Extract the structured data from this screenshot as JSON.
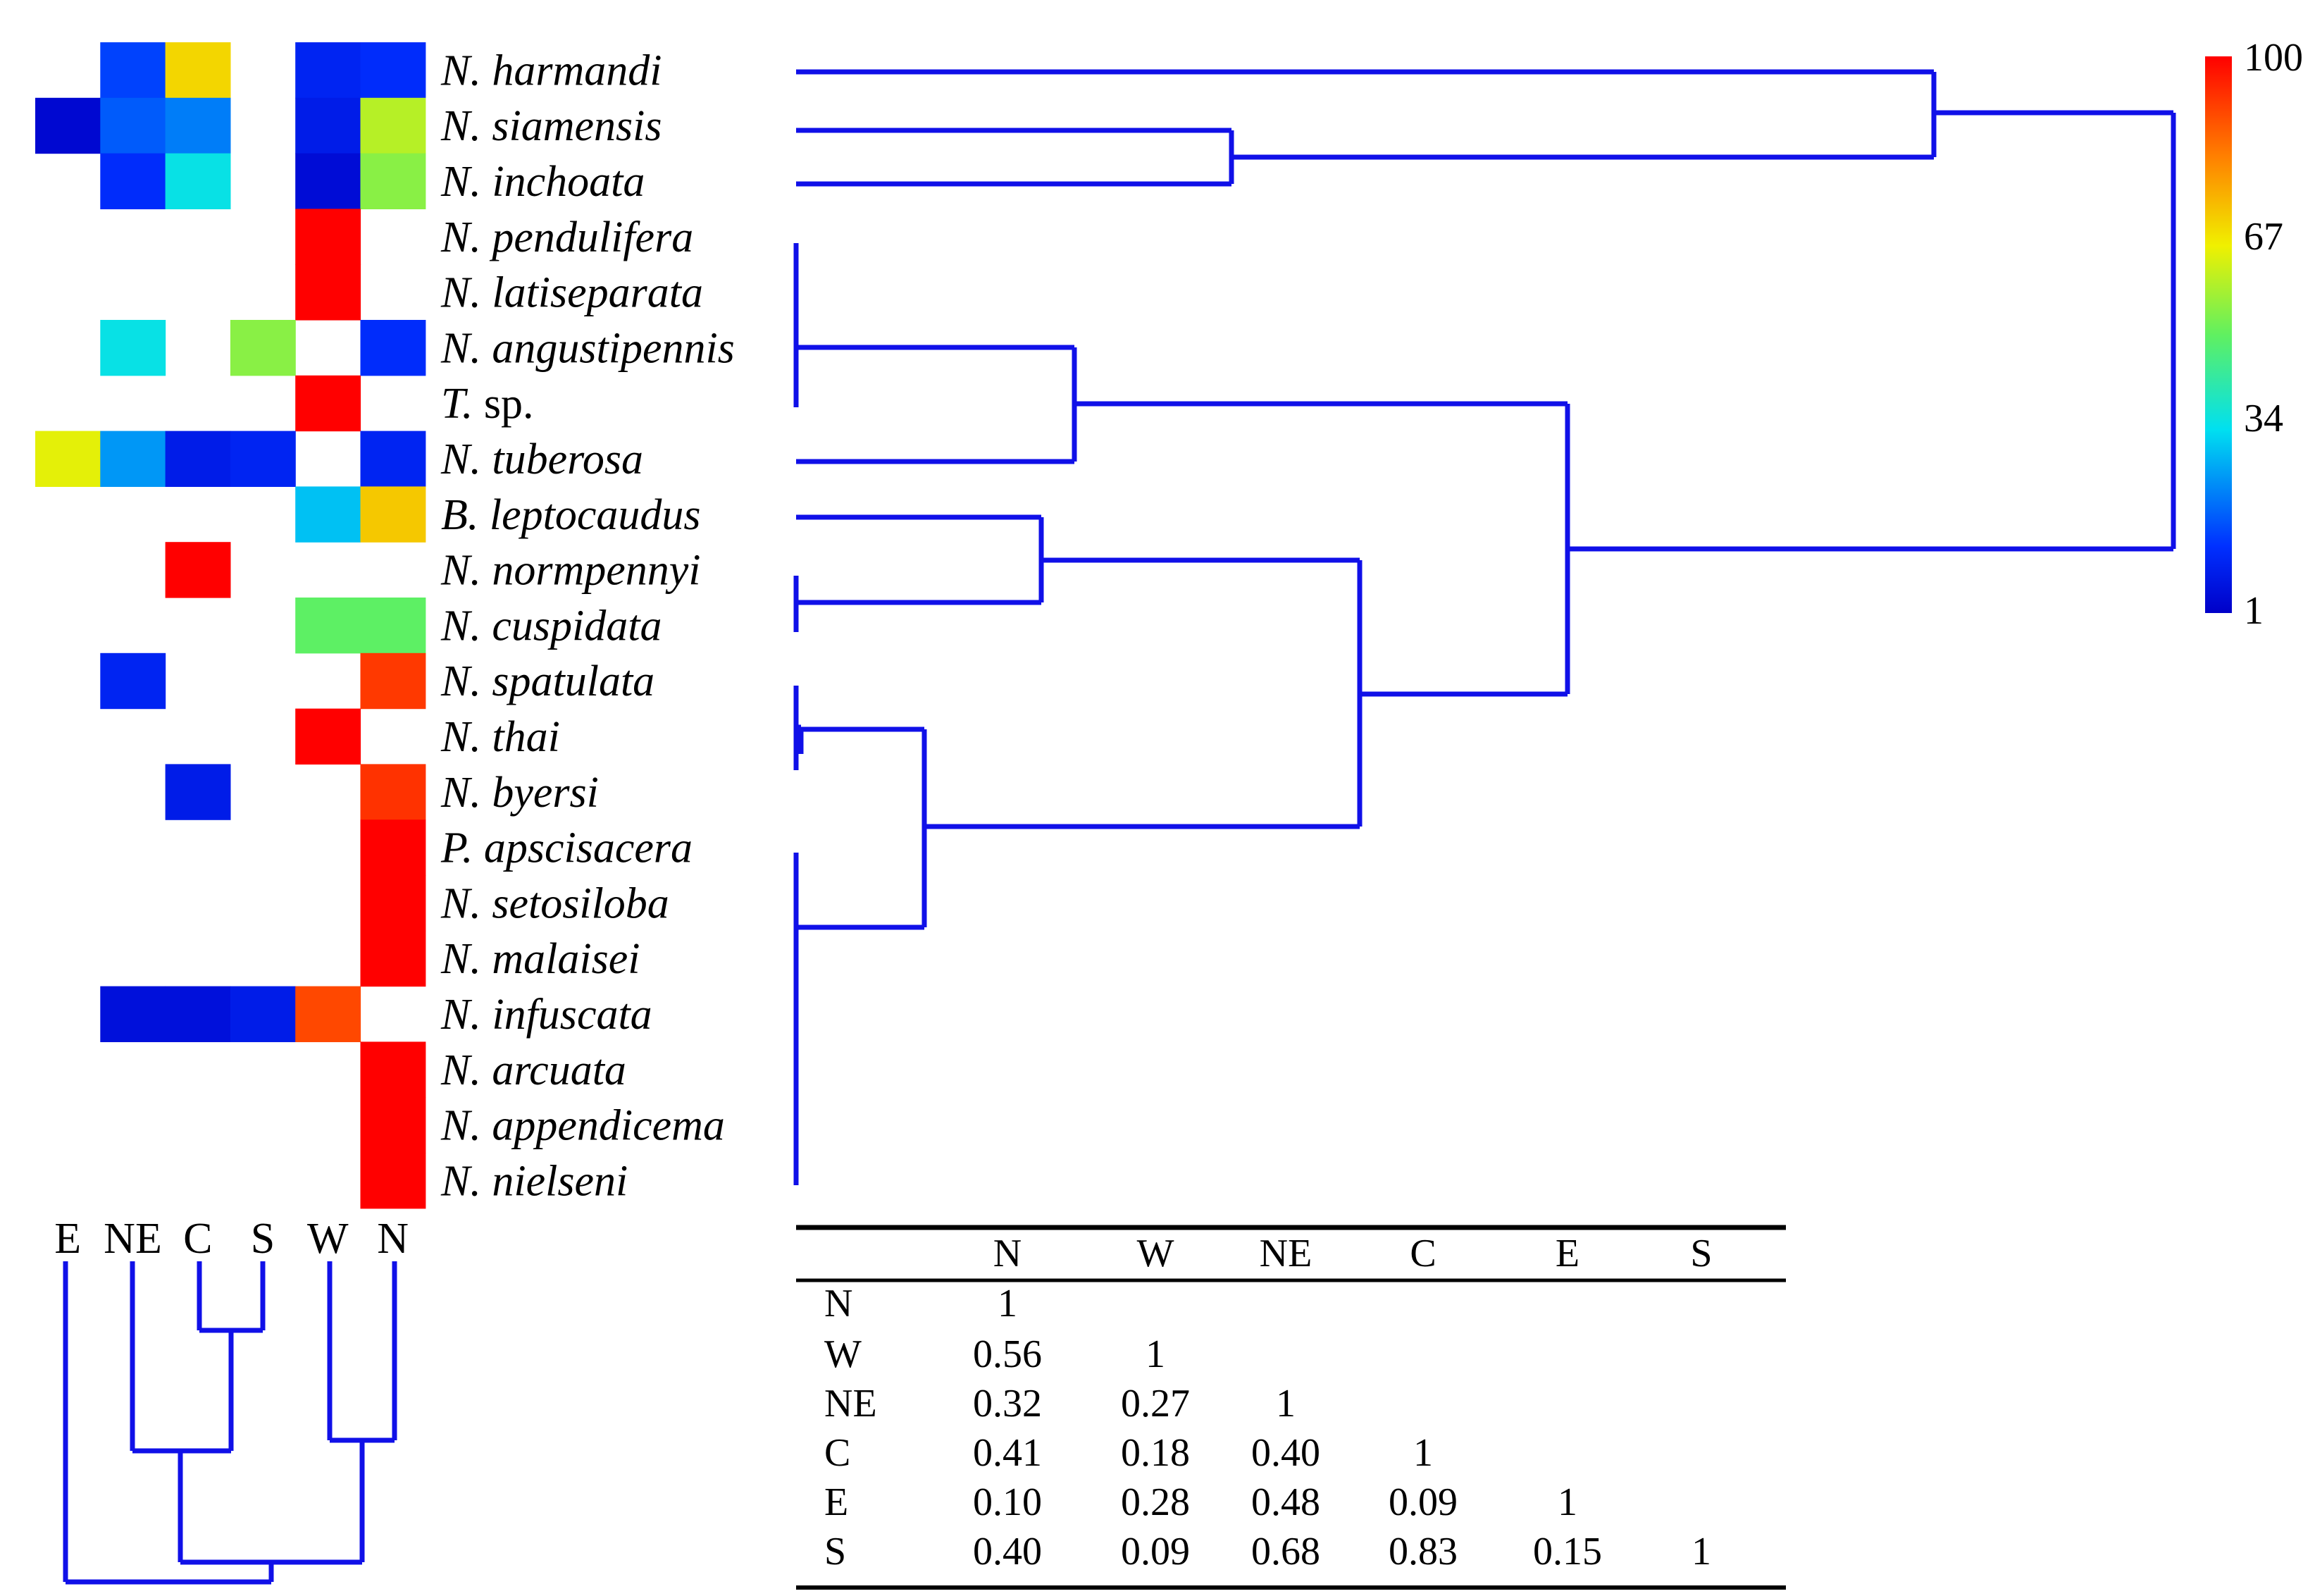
{
  "chart_data": [
    {
      "type": "heatmap",
      "columns": [
        "E",
        "NE",
        "C",
        "S",
        "W",
        "N"
      ],
      "rows": [
        {
          "genus": "N.",
          "epithet": "harmandi",
          "values": [
            null,
            15,
            70,
            null,
            10,
            12
          ]
        },
        {
          "genus": "N.",
          "epithet": "siamensis",
          "values": [
            3,
            18,
            22,
            null,
            8,
            60
          ]
        },
        {
          "genus": "N.",
          "epithet": "inchoata",
          "values": [
            null,
            12,
            35,
            null,
            4,
            55
          ]
        },
        {
          "genus": "N.",
          "epithet": "pendulifera",
          "values": [
            null,
            null,
            null,
            null,
            100,
            null
          ]
        },
        {
          "genus": "N.",
          "epithet": "latiseparata",
          "values": [
            null,
            null,
            null,
            null,
            100,
            null
          ]
        },
        {
          "genus": "N.",
          "epithet": "angustipennis",
          "values": [
            null,
            35,
            null,
            55,
            null,
            12
          ]
        },
        {
          "genus": "T.",
          "epithet": "sp.",
          "values": [
            null,
            null,
            null,
            null,
            100,
            null
          ]
        },
        {
          "genus": "N.",
          "epithet": "tuberosa",
          "values": [
            65,
            25,
            8,
            10,
            null,
            10
          ]
        },
        {
          "genus": "B.",
          "epithet": "leptocaudus",
          "values": [
            null,
            null,
            null,
            null,
            30,
            72
          ]
        },
        {
          "genus": "N.",
          "epithet": "normpennyi",
          "values": [
            null,
            null,
            100,
            null,
            null,
            null
          ]
        },
        {
          "genus": "N.",
          "epithet": "cuspidata",
          "values": [
            null,
            null,
            null,
            null,
            50,
            50
          ]
        },
        {
          "genus": "N.",
          "epithet": "spatulata",
          "values": [
            null,
            10,
            null,
            null,
            null,
            92
          ]
        },
        {
          "genus": "N.",
          "epithet": "thai",
          "values": [
            null,
            null,
            null,
            null,
            100,
            null
          ]
        },
        {
          "genus": "N.",
          "epithet": "byersi",
          "values": [
            null,
            null,
            8,
            null,
            null,
            93
          ]
        },
        {
          "genus": "P.",
          "epithet": "apscisacera",
          "values": [
            null,
            null,
            null,
            null,
            null,
            100
          ]
        },
        {
          "genus": "N.",
          "epithet": "setosiloba",
          "values": [
            null,
            null,
            null,
            null,
            null,
            100
          ]
        },
        {
          "genus": "N.",
          "epithet": "malaisei",
          "values": [
            null,
            null,
            null,
            null,
            null,
            100
          ]
        },
        {
          "genus": "N.",
          "epithet": "infuscata",
          "values": [
            null,
            5,
            5,
            8,
            90,
            null
          ]
        },
        {
          "genus": "N.",
          "epithet": "arcuata",
          "values": [
            null,
            null,
            null,
            null,
            null,
            100
          ]
        },
        {
          "genus": "N.",
          "epithet": "appendicema",
          "values": [
            null,
            null,
            null,
            null,
            null,
            100
          ]
        },
        {
          "genus": "N.",
          "epithet": "nielseni",
          "values": [
            null,
            null,
            null,
            null,
            null,
            100
          ]
        }
      ],
      "colorbar": {
        "min": 1,
        "max": 100,
        "ticks": [
          "100",
          "67",
          "34",
          "1"
        ]
      }
    },
    {
      "type": "table",
      "headers": [
        "",
        "N",
        "W",
        "NE",
        "C",
        "E",
        "S"
      ],
      "rows": [
        [
          "N",
          "1",
          "",
          "",
          "",
          "",
          ""
        ],
        [
          "W",
          "0.56",
          "1",
          "",
          "",
          "",
          ""
        ],
        [
          "NE",
          "0.32",
          "0.27",
          "1",
          "",
          "",
          ""
        ],
        [
          "C",
          "0.41",
          "0.18",
          "0.40",
          "1",
          "",
          ""
        ],
        [
          "E",
          "0.10",
          "0.28",
          "0.48",
          "0.09",
          "1",
          ""
        ],
        [
          "S",
          "0.40",
          "0.09",
          "0.68",
          "0.83",
          "0.15",
          "1"
        ]
      ]
    }
  ]
}
